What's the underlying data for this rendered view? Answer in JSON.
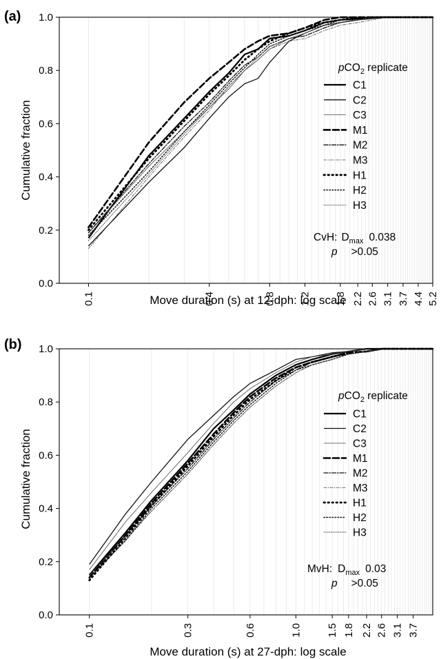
{
  "legend_header_prefix": "p",
  "legend_header_main": "CO",
  "legend_header_sub": "2",
  "legend_header_suffix": " replicate",
  "legend_styles": {
    "C1": {
      "width": 2.2,
      "dash": "",
      "color": "#000000"
    },
    "C2": {
      "width": 1.3,
      "dash": "",
      "color": "#111111"
    },
    "C3": {
      "width": 0.8,
      "dash": "",
      "color": "#444444"
    },
    "M1": {
      "width": 2.6,
      "dash": "9,4",
      "color": "#000000"
    },
    "M2": {
      "width": 1.3,
      "dash": "6,2,1.5,2",
      "color": "#111111"
    },
    "M3": {
      "width": 0.8,
      "dash": "4,2,1,2",
      "color": "#444444"
    },
    "H1": {
      "width": 2.8,
      "dash": "1.5,4.5",
      "color": "#000000"
    },
    "H2": {
      "width": 1.5,
      "dash": "1.5,2.5",
      "color": "#111111"
    },
    "H3": {
      "width": 0.9,
      "dash": "1,1.6",
      "color": "#444444"
    }
  },
  "chart_data": [
    {
      "type": "line",
      "panel_label": "(a)",
      "xlabel": "Move duration (s) at 12-dph: log scale",
      "ylabel": "Cumulative fraction",
      "x_scale": "log",
      "xlim": [
        0.0715,
        5.2
      ],
      "ylim": [
        0,
        1.0
      ],
      "xticks": [
        0.1,
        0.4,
        0.8,
        1.2,
        1.8,
        2.2,
        2.6,
        3.1,
        3.7,
        4.4,
        5.2
      ],
      "xtick_labels": [
        "0.1",
        "0.4",
        "0.8",
        "1.2",
        "1.8",
        "2.2",
        "2.6",
        "3.1",
        "3.7",
        "4.4",
        "5.2"
      ],
      "yticks": [
        0,
        0.2,
        0.4,
        0.6,
        0.8,
        1.0
      ],
      "ytick_labels": [
        "0.0",
        "0.2",
        "0.4",
        "0.6",
        "0.8",
        "1.0"
      ],
      "grid": "vertical",
      "legend_position": "right",
      "stat_comparison": "CvH:",
      "stat_dmax_label": "D",
      "stat_dmax_sub": "max",
      "stat_dmax_value": "0.038",
      "stat_p_label": "p",
      "stat_p_value": ">0.05",
      "series": [
        {
          "name": "C1",
          "x": [
            0.1,
            0.2,
            0.3,
            0.4,
            0.5,
            0.6,
            0.7,
            0.8,
            1.0,
            1.2,
            1.5,
            1.8,
            2.2,
            2.6,
            3.1,
            3.7,
            5.2
          ],
          "y": [
            0.17,
            0.48,
            0.62,
            0.72,
            0.79,
            0.86,
            0.88,
            0.92,
            0.93,
            0.95,
            0.98,
            0.99,
            0.995,
            1.0,
            1.0,
            1.0,
            1.0
          ]
        },
        {
          "name": "C2",
          "x": [
            0.1,
            0.2,
            0.3,
            0.4,
            0.5,
            0.6,
            0.7,
            0.8,
            1.0,
            1.2,
            1.5,
            1.8,
            2.2,
            2.6,
            3.1,
            3.7,
            5.2
          ],
          "y": [
            0.14,
            0.38,
            0.51,
            0.62,
            0.7,
            0.75,
            0.77,
            0.83,
            0.91,
            0.94,
            0.97,
            0.98,
            0.99,
            0.995,
            1.0,
            1.0,
            1.0
          ]
        },
        {
          "name": "C3",
          "x": [
            0.1,
            0.2,
            0.3,
            0.4,
            0.5,
            0.6,
            0.7,
            0.8,
            1.0,
            1.2,
            1.5,
            1.8,
            2.2,
            2.6,
            3.1,
            3.7,
            5.2
          ],
          "y": [
            0.19,
            0.44,
            0.57,
            0.66,
            0.73,
            0.8,
            0.84,
            0.88,
            0.92,
            0.94,
            0.97,
            0.98,
            0.99,
            1.0,
            1.0,
            1.0,
            1.0
          ]
        },
        {
          "name": "M1",
          "x": [
            0.1,
            0.2,
            0.3,
            0.4,
            0.5,
            0.6,
            0.7,
            0.8,
            1.0,
            1.2,
            1.5,
            1.8,
            2.2,
            2.6,
            3.1,
            3.7,
            5.2
          ],
          "y": [
            0.21,
            0.53,
            0.68,
            0.77,
            0.83,
            0.88,
            0.91,
            0.93,
            0.94,
            0.96,
            0.99,
            1.0,
            1.0,
            1.0,
            1.0,
            1.0,
            1.0
          ]
        },
        {
          "name": "M2",
          "x": [
            0.1,
            0.2,
            0.3,
            0.4,
            0.5,
            0.6,
            0.7,
            0.8,
            1.0,
            1.2,
            1.5,
            1.8,
            2.2,
            2.6,
            3.1,
            3.7,
            5.2
          ],
          "y": [
            0.19,
            0.45,
            0.59,
            0.68,
            0.76,
            0.82,
            0.85,
            0.89,
            0.92,
            0.93,
            0.96,
            0.98,
            0.99,
            1.0,
            1.0,
            1.0,
            1.0
          ]
        },
        {
          "name": "M3",
          "x": [
            0.1,
            0.2,
            0.3,
            0.4,
            0.5,
            0.6,
            0.7,
            0.8,
            1.0,
            1.2,
            1.5,
            1.8,
            2.2,
            2.6,
            3.1,
            3.7,
            5.2
          ],
          "y": [
            0.13,
            0.4,
            0.55,
            0.65,
            0.74,
            0.8,
            0.84,
            0.88,
            0.91,
            0.92,
            0.95,
            0.97,
            0.98,
            0.99,
            1.0,
            1.0,
            1.0
          ]
        },
        {
          "name": "H1",
          "x": [
            0.1,
            0.2,
            0.3,
            0.4,
            0.5,
            0.6,
            0.7,
            0.8,
            1.0,
            1.2,
            1.5,
            1.8,
            2.2,
            2.6,
            3.1,
            3.7,
            5.2
          ],
          "y": [
            0.2,
            0.47,
            0.61,
            0.71,
            0.78,
            0.84,
            0.88,
            0.91,
            0.94,
            0.96,
            0.98,
            0.99,
            1.0,
            1.0,
            1.0,
            1.0,
            1.0
          ]
        },
        {
          "name": "H2",
          "x": [
            0.1,
            0.2,
            0.3,
            0.4,
            0.5,
            0.6,
            0.7,
            0.8,
            1.0,
            1.2,
            1.5,
            1.8,
            2.2,
            2.6,
            3.1,
            3.7,
            5.2
          ],
          "y": [
            0.18,
            0.42,
            0.57,
            0.67,
            0.75,
            0.81,
            0.86,
            0.9,
            0.93,
            0.95,
            0.97,
            0.99,
            0.99,
            1.0,
            1.0,
            1.0,
            1.0
          ]
        },
        {
          "name": "H3",
          "x": [
            0.1,
            0.2,
            0.3,
            0.4,
            0.5,
            0.6,
            0.7,
            0.8,
            1.0,
            1.2,
            1.5,
            1.8,
            2.2,
            2.6,
            3.1,
            3.7,
            5.2
          ],
          "y": [
            0.16,
            0.41,
            0.56,
            0.66,
            0.74,
            0.8,
            0.85,
            0.89,
            0.92,
            0.94,
            0.97,
            0.98,
            0.99,
            1.0,
            1.0,
            1.0,
            1.0
          ]
        }
      ]
    },
    {
      "type": "line",
      "panel_label": "(b)",
      "xlabel": "Move duration (s) at 27-dph: log scale",
      "ylabel": "Cumulative fraction",
      "x_scale": "log",
      "xlim": [
        0.0715,
        4.6
      ],
      "ylim": [
        0,
        1.0
      ],
      "xticks": [
        0.1,
        0.3,
        0.6,
        1.0,
        1.5,
        1.8,
        2.2,
        2.6,
        3.1,
        3.7
      ],
      "xtick_labels": [
        "0.1",
        "0.3",
        "0.6",
        "1.0",
        "1.5",
        "1.8",
        "2.2",
        "2.6",
        "3.1",
        "3.7"
      ],
      "yticks": [
        0,
        0.2,
        0.4,
        0.6,
        0.8,
        1.0
      ],
      "ytick_labels": [
        "0.0",
        "0.2",
        "0.4",
        "0.6",
        "0.8",
        "1.0"
      ],
      "grid": "vertical",
      "legend_position": "right",
      "stat_comparison": "MvH:",
      "stat_dmax_label": "D",
      "stat_dmax_sub": "max",
      "stat_dmax_value": "0.03",
      "stat_p_label": "p",
      "stat_p_value": ">0.05",
      "series": [
        {
          "name": "C1",
          "x": [
            0.1,
            0.15,
            0.2,
            0.3,
            0.4,
            0.5,
            0.6,
            0.8,
            1.0,
            1.2,
            1.5,
            1.8,
            2.2,
            2.6,
            3.1,
            3.7,
            4.6
          ],
          "y": [
            0.15,
            0.31,
            0.43,
            0.58,
            0.7,
            0.77,
            0.83,
            0.9,
            0.94,
            0.96,
            0.98,
            0.99,
            1.0,
            1.0,
            1.0,
            1.0,
            1.0
          ]
        },
        {
          "name": "C2",
          "x": [
            0.1,
            0.15,
            0.2,
            0.3,
            0.4,
            0.5,
            0.6,
            0.8,
            1.0,
            1.2,
            1.5,
            1.8,
            2.2,
            2.6,
            3.1,
            3.7,
            4.6
          ],
          "y": [
            0.19,
            0.38,
            0.5,
            0.66,
            0.75,
            0.82,
            0.87,
            0.92,
            0.96,
            0.97,
            0.985,
            0.99,
            1.0,
            1.0,
            1.0,
            1.0,
            1.0
          ]
        },
        {
          "name": "C3",
          "x": [
            0.1,
            0.15,
            0.2,
            0.3,
            0.4,
            0.5,
            0.6,
            0.8,
            1.0,
            1.2,
            1.5,
            1.8,
            2.2,
            2.6,
            3.1,
            3.7,
            4.6
          ],
          "y": [
            0.17,
            0.35,
            0.46,
            0.61,
            0.72,
            0.8,
            0.85,
            0.91,
            0.95,
            0.97,
            0.98,
            0.99,
            1.0,
            1.0,
            1.0,
            1.0,
            1.0
          ]
        },
        {
          "name": "M1",
          "x": [
            0.1,
            0.15,
            0.2,
            0.3,
            0.4,
            0.5,
            0.6,
            0.8,
            1.0,
            1.2,
            1.5,
            1.8,
            2.2,
            2.6,
            3.1,
            3.7,
            4.6
          ],
          "y": [
            0.14,
            0.3,
            0.42,
            0.57,
            0.68,
            0.76,
            0.82,
            0.89,
            0.93,
            0.95,
            0.97,
            0.985,
            0.99,
            1.0,
            1.0,
            1.0,
            1.0
          ]
        },
        {
          "name": "M2",
          "x": [
            0.1,
            0.15,
            0.2,
            0.3,
            0.4,
            0.5,
            0.6,
            0.8,
            1.0,
            1.2,
            1.5,
            1.8,
            2.2,
            2.6,
            3.1,
            3.7,
            4.6
          ],
          "y": [
            0.15,
            0.3,
            0.41,
            0.55,
            0.66,
            0.74,
            0.8,
            0.88,
            0.92,
            0.95,
            0.97,
            0.98,
            0.99,
            1.0,
            1.0,
            1.0,
            1.0
          ]
        },
        {
          "name": "M3",
          "x": [
            0.1,
            0.15,
            0.2,
            0.3,
            0.4,
            0.5,
            0.6,
            0.8,
            1.0,
            1.2,
            1.5,
            1.8,
            2.2,
            2.6,
            3.1,
            3.7,
            4.6
          ],
          "y": [
            0.14,
            0.28,
            0.39,
            0.53,
            0.64,
            0.72,
            0.78,
            0.86,
            0.91,
            0.94,
            0.96,
            0.98,
            0.99,
            1.0,
            1.0,
            1.0,
            1.0
          ]
        },
        {
          "name": "H1",
          "x": [
            0.1,
            0.15,
            0.2,
            0.3,
            0.4,
            0.5,
            0.6,
            0.8,
            1.0,
            1.2,
            1.5,
            1.8,
            2.2,
            2.6,
            3.1,
            3.7,
            4.6
          ],
          "y": [
            0.13,
            0.29,
            0.41,
            0.56,
            0.67,
            0.75,
            0.81,
            0.88,
            0.93,
            0.95,
            0.97,
            0.985,
            0.99,
            1.0,
            1.0,
            1.0,
            1.0
          ]
        },
        {
          "name": "H2",
          "x": [
            0.1,
            0.15,
            0.2,
            0.3,
            0.4,
            0.5,
            0.6,
            0.8,
            1.0,
            1.2,
            1.5,
            1.8,
            2.2,
            2.6,
            3.1,
            3.7,
            4.6
          ],
          "y": [
            0.14,
            0.28,
            0.4,
            0.54,
            0.65,
            0.73,
            0.79,
            0.87,
            0.92,
            0.94,
            0.96,
            0.98,
            0.99,
            1.0,
            1.0,
            1.0,
            1.0
          ]
        },
        {
          "name": "H3",
          "x": [
            0.1,
            0.15,
            0.2,
            0.3,
            0.4,
            0.5,
            0.6,
            0.8,
            1.0,
            1.2,
            1.5,
            1.8,
            2.2,
            2.6,
            3.1,
            3.7,
            4.6
          ],
          "y": [
            0.15,
            0.29,
            0.39,
            0.53,
            0.64,
            0.72,
            0.78,
            0.86,
            0.91,
            0.94,
            0.96,
            0.98,
            0.99,
            1.0,
            1.0,
            1.0,
            1.0
          ]
        }
      ]
    }
  ]
}
